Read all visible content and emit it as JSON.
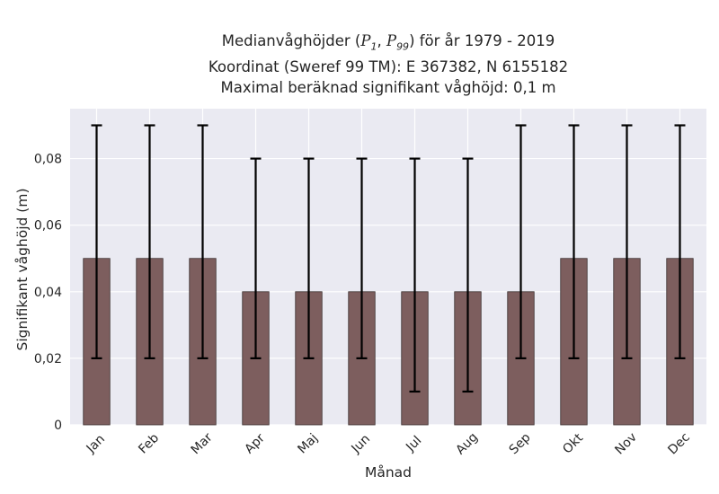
{
  "chart_data": {
    "type": "bar",
    "title_lines": [
      "Medianvåghöjder (P1, P99) för år 1979 - 2019",
      "Koordinat (Sweref 99 TM): E 367382, N 6155182",
      "Maximal beräknad signifikant våghöjd: 0,1 m"
    ],
    "title_parts": {
      "prefix": "Medianvåghöjder (",
      "p_sym": "P",
      "p_low_sub": "1",
      "comma": ", ",
      "p_high_sub": "99",
      "suffix": ") för år 1979 - 2019"
    },
    "xlabel": "Månad",
    "ylabel": "Signifikant våghöjd (m)",
    "categories": [
      "Jan",
      "Feb",
      "Mar",
      "Apr",
      "Maj",
      "Jun",
      "Jul",
      "Aug",
      "Sep",
      "Okt",
      "Nov",
      "Dec"
    ],
    "values": [
      0.05,
      0.05,
      0.05,
      0.04,
      0.04,
      0.04,
      0.04,
      0.04,
      0.04,
      0.05,
      0.05,
      0.05
    ],
    "error_low": [
      0.02,
      0.02,
      0.02,
      0.02,
      0.02,
      0.02,
      0.01,
      0.01,
      0.02,
      0.02,
      0.02,
      0.02
    ],
    "error_high": [
      0.09,
      0.09,
      0.09,
      0.08,
      0.08,
      0.08,
      0.08,
      0.08,
      0.09,
      0.09,
      0.09,
      0.09
    ],
    "ylim": [
      0,
      0.095
    ],
    "yticks": [
      0,
      0.02,
      0.04,
      0.06,
      0.08
    ],
    "ytick_labels": [
      "0",
      "0,02",
      "0,04",
      "0,06",
      "0,08"
    ],
    "grid": true,
    "colors": {
      "bar": "#7d5e5e",
      "bar_edge": "#3a2e2e",
      "error_bar": "#000000",
      "plot_background": "#eaeaf2",
      "grid": "#ffffff"
    }
  }
}
